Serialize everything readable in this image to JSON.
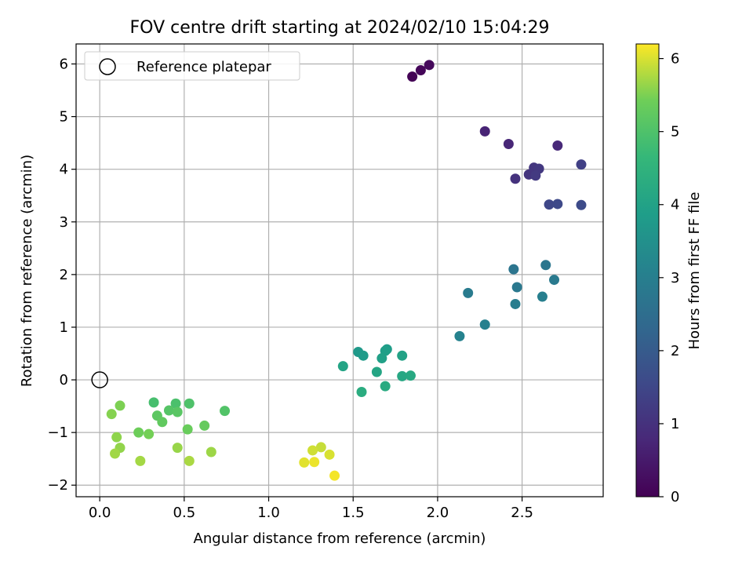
{
  "chart_data": {
    "type": "scatter",
    "title": "FOV centre drift starting at 2024/02/10 15:04:29",
    "xlabel": "Angular distance from reference (arcmin)",
    "ylabel": "Rotation from reference (arcmin)",
    "xlim": [
      -0.14,
      2.98
    ],
    "ylim": [
      -2.22,
      6.38
    ],
    "xticks": [
      0.0,
      0.5,
      1.0,
      1.5,
      2.0,
      2.5
    ],
    "xtick_labels": [
      "0.0",
      "0.5",
      "1.0",
      "1.5",
      "2.0",
      "2.5"
    ],
    "yticks": [
      -2,
      -1,
      0,
      1,
      2,
      3,
      4,
      5,
      6
    ],
    "ytick_labels": [
      "−2",
      "−1",
      "0",
      "1",
      "2",
      "3",
      "4",
      "5",
      "6"
    ],
    "grid": true,
    "legend": {
      "position": "top-left",
      "entries": [
        "Reference platepar"
      ]
    },
    "reference_point": {
      "x": 0.0,
      "y": 0.0
    },
    "colorbar": {
      "label": "Hours from first FF file",
      "range": [
        0,
        6.2
      ],
      "ticks": [
        0,
        1,
        2,
        3,
        4,
        5,
        6
      ],
      "tick_labels": [
        "0",
        "1",
        "2",
        "3",
        "4",
        "5",
        "6"
      ],
      "colormap": "viridis"
    },
    "points": [
      {
        "x": 1.85,
        "y": 5.76,
        "c": 0.05
      },
      {
        "x": 1.9,
        "y": 5.88,
        "c": 0.1
      },
      {
        "x": 1.95,
        "y": 5.98,
        "c": 0.15
      },
      {
        "x": 2.28,
        "y": 4.72,
        "c": 0.7
      },
      {
        "x": 2.42,
        "y": 4.48,
        "c": 0.75
      },
      {
        "x": 2.71,
        "y": 4.45,
        "c": 0.8
      },
      {
        "x": 2.46,
        "y": 3.82,
        "c": 1.0
      },
      {
        "x": 2.54,
        "y": 3.9,
        "c": 1.05
      },
      {
        "x": 2.57,
        "y": 4.03,
        "c": 1.1
      },
      {
        "x": 2.6,
        "y": 4.01,
        "c": 1.15
      },
      {
        "x": 2.58,
        "y": 3.88,
        "c": 1.2
      },
      {
        "x": 2.85,
        "y": 4.09,
        "c": 1.35
      },
      {
        "x": 2.66,
        "y": 3.33,
        "c": 1.5
      },
      {
        "x": 2.71,
        "y": 3.34,
        "c": 1.55
      },
      {
        "x": 2.85,
        "y": 3.32,
        "c": 1.6
      },
      {
        "x": 2.45,
        "y": 2.1,
        "c": 2.7
      },
      {
        "x": 2.64,
        "y": 2.18,
        "c": 2.75
      },
      {
        "x": 2.47,
        "y": 1.76,
        "c": 2.8
      },
      {
        "x": 2.69,
        "y": 1.9,
        "c": 2.85
      },
      {
        "x": 2.18,
        "y": 1.65,
        "c": 2.9
      },
      {
        "x": 2.46,
        "y": 1.44,
        "c": 2.95
      },
      {
        "x": 2.62,
        "y": 1.58,
        "c": 3.0
      },
      {
        "x": 2.28,
        "y": 1.05,
        "c": 3.05
      },
      {
        "x": 2.13,
        "y": 0.83,
        "c": 3.1
      },
      {
        "x": 1.53,
        "y": 0.53,
        "c": 3.75
      },
      {
        "x": 1.56,
        "y": 0.46,
        "c": 3.8
      },
      {
        "x": 1.7,
        "y": 0.58,
        "c": 3.85
      },
      {
        "x": 1.69,
        "y": 0.55,
        "c": 3.9
      },
      {
        "x": 1.67,
        "y": 0.41,
        "c": 3.95
      },
      {
        "x": 1.79,
        "y": 0.46,
        "c": 4.0
      },
      {
        "x": 1.44,
        "y": 0.26,
        "c": 4.05
      },
      {
        "x": 1.64,
        "y": 0.15,
        "c": 4.1
      },
      {
        "x": 1.79,
        "y": 0.07,
        "c": 4.15
      },
      {
        "x": 1.84,
        "y": 0.08,
        "c": 4.2
      },
      {
        "x": 1.69,
        "y": -0.12,
        "c": 4.25
      },
      {
        "x": 1.55,
        "y": -0.23,
        "c": 4.3
      },
      {
        "x": 0.32,
        "y": -0.43,
        "c": 4.9
      },
      {
        "x": 0.45,
        "y": -0.45,
        "c": 4.95
      },
      {
        "x": 0.53,
        "y": -0.45,
        "c": 5.0
      },
      {
        "x": 0.74,
        "y": -0.59,
        "c": 5.05
      },
      {
        "x": 0.41,
        "y": -0.58,
        "c": 5.1
      },
      {
        "x": 0.46,
        "y": -0.61,
        "c": 5.15
      },
      {
        "x": 0.34,
        "y": -0.68,
        "c": 5.2
      },
      {
        "x": 0.37,
        "y": -0.8,
        "c": 5.25
      },
      {
        "x": 0.62,
        "y": -0.87,
        "c": 5.3
      },
      {
        "x": 0.52,
        "y": -0.94,
        "c": 5.35
      },
      {
        "x": 0.23,
        "y": -1.0,
        "c": 5.4
      },
      {
        "x": 0.29,
        "y": -1.03,
        "c": 5.45
      },
      {
        "x": 0.12,
        "y": -0.49,
        "c": 5.5
      },
      {
        "x": 0.07,
        "y": -0.65,
        "c": 5.55
      },
      {
        "x": 0.1,
        "y": -1.09,
        "c": 5.6
      },
      {
        "x": 0.12,
        "y": -1.29,
        "c": 5.62
      },
      {
        "x": 0.46,
        "y": -1.29,
        "c": 5.65
      },
      {
        "x": 0.66,
        "y": -1.37,
        "c": 5.68
      },
      {
        "x": 0.09,
        "y": -1.4,
        "c": 5.7
      },
      {
        "x": 0.24,
        "y": -1.54,
        "c": 5.72
      },
      {
        "x": 0.53,
        "y": -1.54,
        "c": 5.75
      },
      {
        "x": 1.31,
        "y": -1.28,
        "c": 5.9
      },
      {
        "x": 1.26,
        "y": -1.34,
        "c": 5.95
      },
      {
        "x": 1.36,
        "y": -1.42,
        "c": 6.0
      },
      {
        "x": 1.21,
        "y": -1.57,
        "c": 6.05
      },
      {
        "x": 1.27,
        "y": -1.56,
        "c": 6.1
      },
      {
        "x": 1.39,
        "y": -1.82,
        "c": 6.15
      }
    ]
  }
}
